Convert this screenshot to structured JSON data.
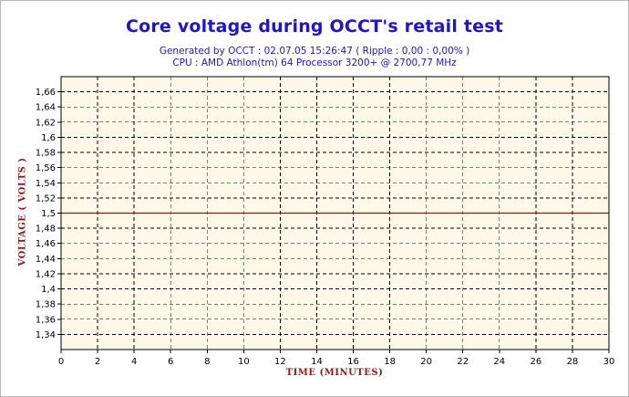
{
  "header": {
    "title": "Core voltage during OCCT's retail test",
    "subtitle_1": "Generated by OCCT : 02.07.05 15:26:47 ( Ripple : 0,00 : 0,00% )",
    "subtitle_2": "CPU : AMD Athlon(tm) 64 Processor 3200+ @ 2700,77 MHz"
  },
  "colors": {
    "title": "#1e14d2",
    "axis_label": "#8b1a1a",
    "plot_background": "#fdf8e8",
    "series_line": "#c00000",
    "grid": "#000000"
  },
  "chart_data": {
    "type": "line",
    "xlabel": "TIME (MINUTES)",
    "ylabel": "VOLTAGE ( VOLTS )",
    "xlim": [
      0,
      30
    ],
    "ylim": [
      1.32,
      1.68
    ],
    "x_ticks": [
      0,
      2,
      4,
      6,
      8,
      10,
      12,
      14,
      16,
      18,
      20,
      22,
      24,
      26,
      28,
      30
    ],
    "y_ticks": [
      1.34,
      1.36,
      1.38,
      1.4,
      1.42,
      1.44,
      1.46,
      1.48,
      1.5,
      1.52,
      1.54,
      1.56,
      1.58,
      1.6,
      1.62,
      1.64,
      1.66
    ],
    "y_tick_labels": [
      "1,34",
      "1,36",
      "1,38",
      "1,4",
      "1,42",
      "1,44",
      "1,46",
      "1,48",
      "1,5",
      "1,52",
      "1,54",
      "1,56",
      "1,58",
      "1,6",
      "1,62",
      "1,64",
      "1,66"
    ],
    "grid": true,
    "grid_style": "dashed",
    "series": [
      {
        "x": [
          0,
          2,
          4,
          6,
          8,
          10,
          12,
          14,
          16,
          18,
          20,
          22,
          24,
          26,
          28,
          30
        ],
        "values": [
          1.5,
          1.5,
          1.5,
          1.5,
          1.5,
          1.5,
          1.5,
          1.5,
          1.5,
          1.5,
          1.5,
          1.5,
          1.5,
          1.5,
          1.5,
          1.5
        ]
      }
    ]
  }
}
